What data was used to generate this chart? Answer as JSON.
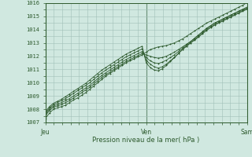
{
  "title": "",
  "xlabel": "Pression niveau de la mer( hPa )",
  "ylabel": "",
  "bg_color": "#d0e8e0",
  "grid_color": "#a0c0b8",
  "line_color": "#2d5a2d",
  "ylim": [
    1007,
    1016
  ],
  "yticks": [
    1007,
    1008,
    1009,
    1010,
    1011,
    1012,
    1013,
    1014,
    1015,
    1016
  ],
  "xtick_labels": [
    "Jeu",
    "Ven",
    "Sam"
  ],
  "xtick_pos": [
    0.0,
    0.5,
    1.0
  ],
  "vline_positions": [
    0.0,
    0.5,
    1.0
  ],
  "series": [
    {
      "x": [
        0.0,
        0.02,
        0.04,
        0.06,
        0.08,
        0.1,
        0.12,
        0.14,
        0.16,
        0.18,
        0.2,
        0.22,
        0.24,
        0.26,
        0.28,
        0.3,
        0.32,
        0.34,
        0.36,
        0.38,
        0.4,
        0.42,
        0.44,
        0.46,
        0.48,
        0.5,
        0.52,
        0.54,
        0.56,
        0.58,
        0.6,
        0.62,
        0.64,
        0.66,
        0.68,
        0.7,
        0.72,
        0.74,
        0.76,
        0.78,
        0.8,
        0.82,
        0.84,
        0.86,
        0.88,
        0.9,
        0.92,
        0.94,
        0.96,
        0.98,
        1.0
      ],
      "y": [
        1007.3,
        1007.7,
        1008.0,
        1008.1,
        1008.2,
        1008.3,
        1008.5,
        1008.7,
        1008.85,
        1009.05,
        1009.25,
        1009.5,
        1009.75,
        1010.0,
        1010.25,
        1010.5,
        1010.7,
        1010.9,
        1011.1,
        1011.3,
        1011.5,
        1011.65,
        1011.8,
        1011.95,
        1012.1,
        1012.3,
        1012.5,
        1012.6,
        1012.7,
        1012.75,
        1012.8,
        1012.9,
        1013.0,
        1013.15,
        1013.3,
        1013.5,
        1013.7,
        1013.9,
        1014.1,
        1014.3,
        1014.5,
        1014.65,
        1014.8,
        1014.95,
        1015.1,
        1015.25,
        1015.4,
        1015.55,
        1015.7,
        1015.85,
        1016.05
      ]
    },
    {
      "x": [
        0.0,
        0.02,
        0.04,
        0.06,
        0.08,
        0.1,
        0.12,
        0.14,
        0.16,
        0.18,
        0.2,
        0.22,
        0.24,
        0.26,
        0.28,
        0.3,
        0.32,
        0.34,
        0.36,
        0.38,
        0.4,
        0.42,
        0.44,
        0.46,
        0.48,
        0.5,
        0.52,
        0.54,
        0.56,
        0.58,
        0.6,
        0.62,
        0.64,
        0.66,
        0.68,
        0.7,
        0.72,
        0.74,
        0.76,
        0.78,
        0.8,
        0.82,
        0.84,
        0.86,
        0.88,
        0.9,
        0.92,
        0.94,
        0.96,
        0.98,
        1.0
      ],
      "y": [
        1007.5,
        1007.9,
        1008.15,
        1008.25,
        1008.35,
        1008.5,
        1008.65,
        1008.85,
        1009.05,
        1009.25,
        1009.45,
        1009.65,
        1009.9,
        1010.15,
        1010.4,
        1010.6,
        1010.8,
        1011.0,
        1011.2,
        1011.4,
        1011.6,
        1011.75,
        1011.9,
        1012.05,
        1012.2,
        1012.1,
        1012.0,
        1011.9,
        1011.85,
        1011.9,
        1012.0,
        1012.15,
        1012.3,
        1012.5,
        1012.7,
        1012.9,
        1013.1,
        1013.35,
        1013.6,
        1013.85,
        1014.1,
        1014.3,
        1014.5,
        1014.65,
        1014.8,
        1014.95,
        1015.1,
        1015.25,
        1015.4,
        1015.55,
        1015.7
      ]
    },
    {
      "x": [
        0.0,
        0.02,
        0.04,
        0.06,
        0.08,
        0.1,
        0.12,
        0.14,
        0.16,
        0.18,
        0.2,
        0.22,
        0.24,
        0.26,
        0.28,
        0.3,
        0.32,
        0.34,
        0.36,
        0.38,
        0.4,
        0.42,
        0.44,
        0.46,
        0.48,
        0.5,
        0.52,
        0.54,
        0.56,
        0.58,
        0.6,
        0.62,
        0.64,
        0.66,
        0.68,
        0.7,
        0.72,
        0.74,
        0.76,
        0.78,
        0.8,
        0.82,
        0.84,
        0.86,
        0.88,
        0.9,
        0.92,
        0.94,
        0.96,
        0.98,
        1.0
      ],
      "y": [
        1007.6,
        1008.0,
        1008.25,
        1008.35,
        1008.5,
        1008.65,
        1008.8,
        1009.0,
        1009.2,
        1009.4,
        1009.6,
        1009.8,
        1010.05,
        1010.3,
        1010.55,
        1010.75,
        1010.95,
        1011.15,
        1011.35,
        1011.55,
        1011.75,
        1011.9,
        1012.05,
        1012.2,
        1012.35,
        1011.9,
        1011.65,
        1011.5,
        1011.45,
        1011.55,
        1011.7,
        1011.9,
        1012.1,
        1012.35,
        1012.6,
        1012.85,
        1013.1,
        1013.35,
        1013.6,
        1013.85,
        1014.1,
        1014.3,
        1014.5,
        1014.65,
        1014.8,
        1014.95,
        1015.1,
        1015.25,
        1015.4,
        1015.52,
        1015.63
      ]
    },
    {
      "x": [
        0.0,
        0.02,
        0.04,
        0.06,
        0.08,
        0.1,
        0.12,
        0.14,
        0.16,
        0.18,
        0.2,
        0.22,
        0.24,
        0.26,
        0.28,
        0.3,
        0.32,
        0.34,
        0.36,
        0.38,
        0.4,
        0.42,
        0.44,
        0.46,
        0.48,
        0.5,
        0.52,
        0.54,
        0.56,
        0.58,
        0.6,
        0.62,
        0.64,
        0.66,
        0.68,
        0.7,
        0.72,
        0.74,
        0.76,
        0.78,
        0.8,
        0.82,
        0.84,
        0.86,
        0.88,
        0.9,
        0.92,
        0.94,
        0.96,
        0.98,
        1.0
      ],
      "y": [
        1007.7,
        1008.1,
        1008.35,
        1008.5,
        1008.65,
        1008.8,
        1009.0,
        1009.2,
        1009.4,
        1009.6,
        1009.8,
        1010.0,
        1010.25,
        1010.5,
        1010.75,
        1010.95,
        1011.15,
        1011.35,
        1011.55,
        1011.75,
        1011.95,
        1012.1,
        1012.25,
        1012.4,
        1012.55,
        1011.7,
        1011.4,
        1011.2,
        1011.1,
        1011.2,
        1011.4,
        1011.65,
        1011.9,
        1012.2,
        1012.5,
        1012.75,
        1013.0,
        1013.25,
        1013.5,
        1013.75,
        1014.0,
        1014.2,
        1014.4,
        1014.55,
        1014.7,
        1014.85,
        1015.0,
        1015.15,
        1015.3,
        1015.45,
        1015.58
      ]
    },
    {
      "x": [
        0.0,
        0.02,
        0.04,
        0.06,
        0.08,
        0.1,
        0.12,
        0.14,
        0.16,
        0.18,
        0.2,
        0.22,
        0.24,
        0.26,
        0.28,
        0.3,
        0.32,
        0.34,
        0.36,
        0.38,
        0.4,
        0.42,
        0.44,
        0.46,
        0.48,
        0.5,
        0.52,
        0.54,
        0.56,
        0.58,
        0.6,
        0.62,
        0.64,
        0.66,
        0.68,
        0.7,
        0.72,
        0.74,
        0.76,
        0.78,
        0.8,
        0.82,
        0.84,
        0.86,
        0.88,
        0.9,
        0.92,
        0.94,
        0.96,
        0.98,
        1.0
      ],
      "y": [
        1007.8,
        1008.2,
        1008.45,
        1008.6,
        1008.75,
        1008.95,
        1009.15,
        1009.35,
        1009.55,
        1009.75,
        1009.95,
        1010.2,
        1010.45,
        1010.7,
        1010.95,
        1011.15,
        1011.35,
        1011.55,
        1011.75,
        1011.95,
        1012.15,
        1012.3,
        1012.45,
        1012.6,
        1012.75,
        1011.5,
        1011.15,
        1010.95,
        1010.9,
        1011.05,
        1011.3,
        1011.6,
        1011.9,
        1012.2,
        1012.5,
        1012.75,
        1013.0,
        1013.2,
        1013.45,
        1013.7,
        1013.95,
        1014.15,
        1014.35,
        1014.5,
        1014.65,
        1014.8,
        1014.95,
        1015.1,
        1015.25,
        1015.4,
        1015.53
      ]
    }
  ]
}
